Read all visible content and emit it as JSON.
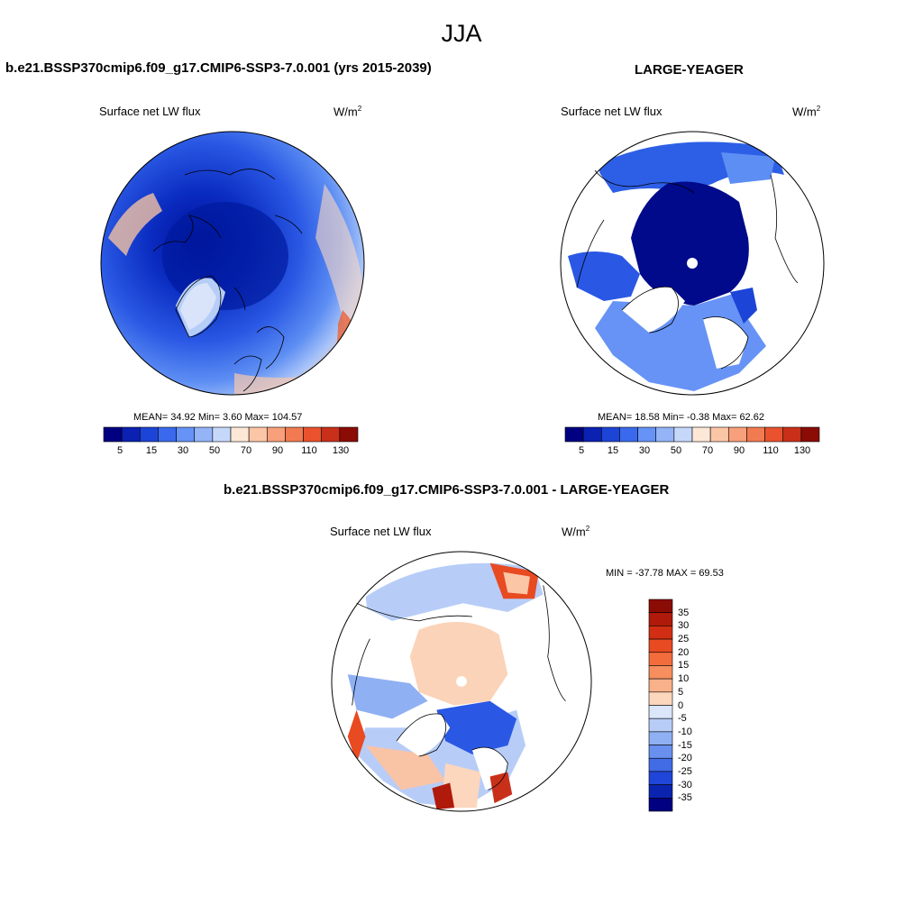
{
  "title": "JJA",
  "panels": [
    {
      "id": "model",
      "title": "b.e21.BSSP370cmip6.f09_g17.CMIP6-SSP3-7.0.001 (yrs 2015-2039)",
      "variable": "Surface net LW flux",
      "units": "W/m",
      "units_sup": "2",
      "stats": "MEAN=  34.92  Min=   3.60  Max= 104.57",
      "colorbar": {
        "ticks": [
          "5",
          "15",
          "30",
          "50",
          "70",
          "90",
          "110",
          "130"
        ],
        "colors": [
          "#000080",
          "#0a21b2",
          "#1c44d6",
          "#3a69ed",
          "#6693f5",
          "#94b4f7",
          "#c6d8fa",
          "#fde8d8",
          "#fbc6a6",
          "#f7a07b",
          "#f27a51",
          "#e9522d",
          "#c8301a",
          "#8b0c05"
        ]
      }
    },
    {
      "id": "obs",
      "title": "LARGE-YEAGER",
      "variable": "Surface net LW flux",
      "units": "W/m",
      "units_sup": "2",
      "stats": "MEAN=  18.58  Min=  -0.38  Max=  62.62",
      "colorbar": {
        "ticks": [
          "5",
          "15",
          "30",
          "50",
          "70",
          "90",
          "110",
          "130"
        ],
        "colors": [
          "#000080",
          "#0a21b2",
          "#1c44d6",
          "#3a69ed",
          "#6693f5",
          "#94b4f7",
          "#c6d8fa",
          "#fde8d8",
          "#fbc6a6",
          "#f7a07b",
          "#f27a51",
          "#e9522d",
          "#c8301a",
          "#8b0c05"
        ]
      }
    },
    {
      "id": "diff",
      "title": "b.e21.BSSP370cmip6.f09_g17.CMIP6-SSP3-7.0.001 - LARGE-YEAGER",
      "variable": "Surface net LW flux",
      "units": "W/m",
      "units_sup": "2",
      "stats": "MIN = -37.78 MAX =  69.53",
      "colorbar": {
        "ticks": [
          "35",
          "30",
          "25",
          "20",
          "15",
          "10",
          "5",
          "0",
          "-5",
          "-10",
          "-15",
          "-20",
          "-25",
          "-30",
          "-35"
        ],
        "colors": [
          "#8b0c05",
          "#b01a0a",
          "#d22e13",
          "#e84a22",
          "#f26c3c",
          "#f68e5e",
          "#f9b18a",
          "#fcd6bd",
          "#dbe6fb",
          "#b7cdf8",
          "#8fb0f3",
          "#6990ee",
          "#416ce6",
          "#1f46d8",
          "#0a24b0",
          "#000080"
        ]
      }
    }
  ]
}
